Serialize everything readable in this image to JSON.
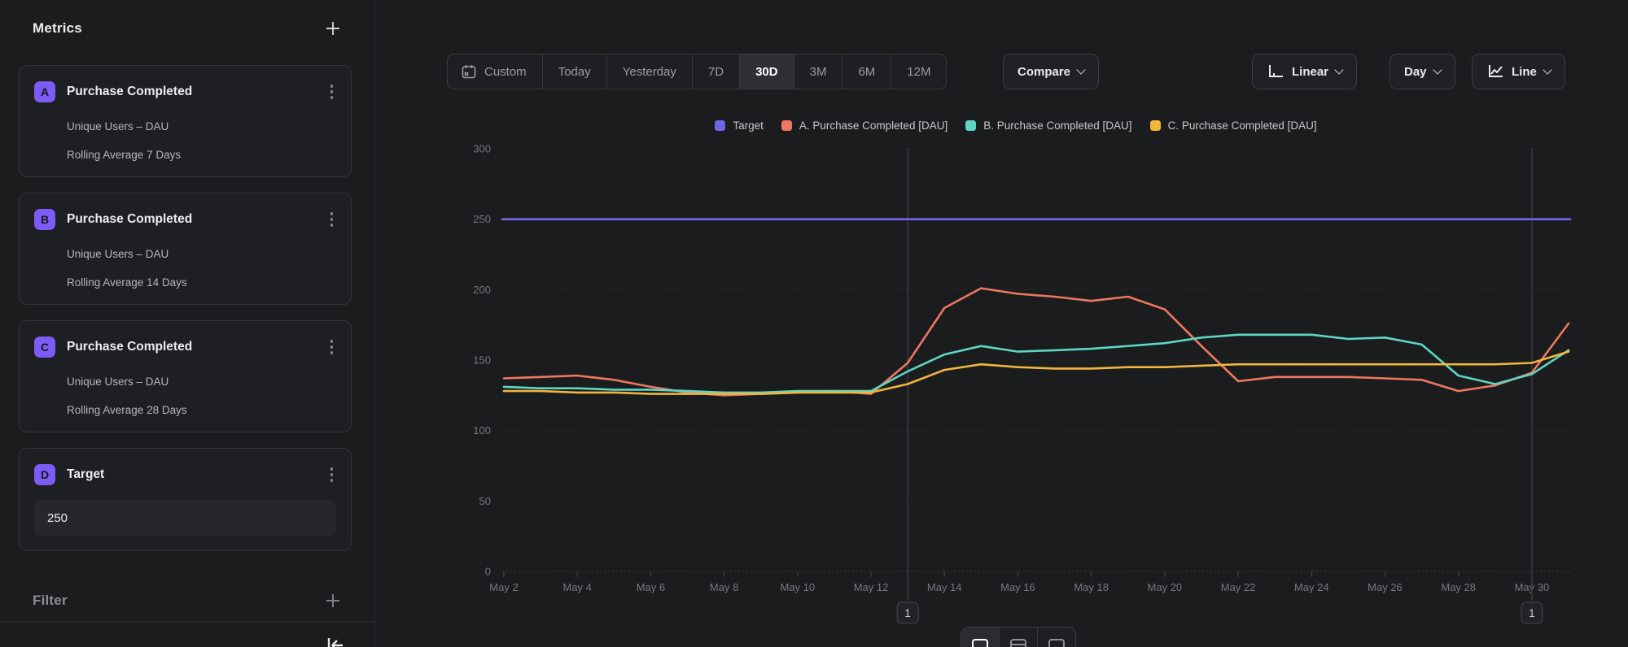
{
  "colors": {
    "badge_accent": "#7c5cf6",
    "target": "#7164e9",
    "series_a": "#ee7761",
    "series_b": "#5ed6c3",
    "series_c": "#f1b63d"
  },
  "sidebar": {
    "title": "Metrics",
    "filter_label": "Filter",
    "cards": [
      {
        "id": "A",
        "title": "Purchase Completed",
        "rows": [
          "Unique Users – DAU",
          "Rolling Average 7 Days"
        ]
      },
      {
        "id": "B",
        "title": "Purchase Completed",
        "rows": [
          "Unique Users – DAU",
          "Rolling Average 14 Days"
        ]
      },
      {
        "id": "C",
        "title": "Purchase Completed",
        "rows": [
          "Unique Users – DAU",
          "Rolling Average 28 Days"
        ]
      },
      {
        "id": "D",
        "title": "Target",
        "value": "250"
      }
    ]
  },
  "toolbar": {
    "ranges": [
      "Custom",
      "Today",
      "Yesterday",
      "7D",
      "30D",
      "3M",
      "6M",
      "12M"
    ],
    "active_range": "30D",
    "compare_label": "Compare",
    "scale_label": "Linear",
    "interval_label": "Day",
    "chart_type_label": "Line"
  },
  "chart_data": {
    "type": "line",
    "ylim": [
      0,
      300
    ],
    "y_ticks": [
      0,
      50,
      100,
      150,
      200,
      250,
      300
    ],
    "x_tick_labels": [
      "May 2",
      "May 4",
      "May 6",
      "May 8",
      "May 10",
      "May 12",
      "May 14",
      "May 16",
      "May 18",
      "May 20",
      "May 22",
      "May 24",
      "May 26",
      "May 28",
      "May 30"
    ],
    "x_days": [
      "May 2",
      "May 3",
      "May 4",
      "May 5",
      "May 6",
      "May 7",
      "May 8",
      "May 9",
      "May 10",
      "May 11",
      "May 12",
      "May 13",
      "May 14",
      "May 15",
      "May 16",
      "May 17",
      "May 18",
      "May 19",
      "May 20",
      "May 21",
      "May 22",
      "May 23",
      "May 24",
      "May 25",
      "May 26",
      "May 27",
      "May 28",
      "May 29",
      "May 30",
      "May 31"
    ],
    "grid": "horizontal-dashed",
    "legend_position": "top-center",
    "series": [
      {
        "name": "Target",
        "color": "#7164e9",
        "kind": "constant",
        "value": 250
      },
      {
        "name": "A. Purchase Completed [DAU]",
        "color": "#ee7761",
        "kind": "line",
        "values": [
          137,
          138,
          139,
          136,
          131,
          127,
          125,
          126,
          127,
          128,
          126,
          148,
          187,
          201,
          197,
          195,
          192,
          195,
          186,
          160,
          135,
          138,
          138,
          138,
          137,
          136,
          128,
          132,
          141,
          176
        ]
      },
      {
        "name": "B. Purchase Completed [DAU]",
        "color": "#5ed6c3",
        "kind": "line",
        "values": [
          131,
          130,
          130,
          129,
          129,
          128,
          127,
          127,
          128,
          128,
          128,
          142,
          154,
          160,
          156,
          157,
          158,
          160,
          162,
          166,
          168,
          168,
          168,
          165,
          166,
          161,
          139,
          133,
          140,
          157
        ]
      },
      {
        "name": "C. Purchase Completed [DAU]",
        "color": "#f1b63d",
        "kind": "line",
        "values": [
          128,
          128,
          127,
          127,
          126,
          126,
          126,
          126,
          127,
          127,
          127,
          133,
          143,
          147,
          145,
          144,
          144,
          145,
          145,
          146,
          147,
          147,
          147,
          147,
          147,
          147,
          147,
          147,
          148,
          156
        ]
      }
    ],
    "annotations": [
      {
        "label": "1",
        "day_index": 11
      },
      {
        "label": "1",
        "day_index": 28
      }
    ]
  },
  "bottom_toggle": {
    "options": [
      "chart-view",
      "chart-and-table-view",
      "table-view"
    ],
    "active_index": 0
  }
}
